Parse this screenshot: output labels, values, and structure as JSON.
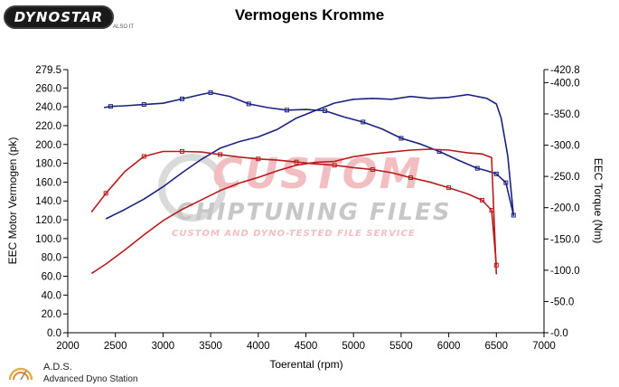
{
  "header": {
    "logo_text": "DYNOSTAR",
    "logo_sub": "ALSO IT",
    "title": "Vermogens Kromme"
  },
  "footer": {
    "name": "A.D.S.",
    "subtitle": "Advanced Dyno Station"
  },
  "watermark": {
    "main": "CUSTOM",
    "sub": "CHIPTUNING FILES",
    "tagline": "CUSTOM AND DYNO-TESTED FILE SERVICE"
  },
  "colors": {
    "tuned": "#1a237e",
    "stock": "#b71c1c",
    "axis": "#000000"
  },
  "chart_data": {
    "type": "line",
    "xlabel": "Toerental (rpm)",
    "ylabel_left": "EEC Motor Vermogen (pk)",
    "ylabel_right": "EEC Torque (Nm)",
    "xlim": [
      2000,
      7000
    ],
    "ylim_left": [
      0.0,
      279.5
    ],
    "ylim_right": [
      0.0,
      420.8
    ],
    "x_ticks": [
      "2000",
      "2500",
      "3000",
      "3500",
      "4000",
      "4500",
      "5000",
      "5500",
      "6000",
      "6500",
      "7000"
    ],
    "y_left_ticks": [
      "0.0",
      "20.0",
      "40.0",
      "60.0",
      "80.0",
      "100.0",
      "120.0",
      "140.0",
      "160.0",
      "180.0",
      "200.0",
      "220.0",
      "240.0",
      "260.0",
      "279.5"
    ],
    "y_right_ticks": [
      "0.0",
      "50.0",
      "100.0",
      "150.0",
      "200.0",
      "250.0",
      "300.0",
      "350.0",
      "400.0",
      "420.8"
    ],
    "series": [
      {
        "color": "#1a237e",
        "axis": "left",
        "x": [
          2400,
          2600,
          2800,
          3000,
          3200,
          3400,
          3600,
          3800,
          4000,
          4200,
          4400,
          4600,
          4800,
          5000,
          5200,
          5400,
          5600,
          5800,
          6000,
          6200,
          6400,
          6500,
          6550,
          6620,
          6680
        ],
        "y": [
          121,
          131,
          142,
          155,
          170,
          184,
          196,
          203,
          208,
          216,
          228,
          236,
          244,
          248,
          249,
          248,
          251,
          249,
          250,
          253,
          249,
          243,
          228,
          188,
          124
        ]
      },
      {
        "color": "#1a237e",
        "axis": "right",
        "x": [
          2380,
          2450,
          2600,
          2800,
          3000,
          3200,
          3400,
          3500,
          3700,
          3900,
          4100,
          4300,
          4500,
          4700,
          4900,
          5100,
          5300,
          5500,
          5700,
          5900,
          6100,
          6300,
          6400,
          6500,
          6600,
          6680
        ],
        "y": [
          360,
          362,
          363,
          365,
          367,
          374,
          381,
          384,
          378,
          366,
          360,
          356,
          357,
          355,
          345,
          337,
          326,
          311,
          302,
          290,
          276,
          263,
          259,
          254,
          240,
          188
        ]
      },
      {
        "color": "#b71c1c",
        "axis": "left",
        "x": [
          2250,
          2400,
          2600,
          2800,
          3000,
          3200,
          3400,
          3600,
          3800,
          4000,
          4200,
          4400,
          4600,
          4800,
          5000,
          5200,
          5400,
          5600,
          5800,
          6000,
          6200,
          6350,
          6450,
          6500
        ],
        "y": [
          63,
          73,
          88,
          104,
          119,
          131,
          141,
          151,
          159,
          165,
          172,
          178,
          181,
          182,
          187,
          190,
          192,
          194,
          195,
          194,
          191,
          190,
          186,
          62
        ]
      },
      {
        "color": "#b71c1c",
        "axis": "right",
        "x": [
          2250,
          2400,
          2600,
          2800,
          3000,
          3200,
          3400,
          3600,
          3800,
          4000,
          4200,
          4400,
          4600,
          4800,
          5000,
          5200,
          5400,
          5600,
          5800,
          6000,
          6200,
          6350,
          6450,
          6500
        ],
        "y": [
          193,
          223,
          258,
          282,
          290,
          290,
          289,
          285,
          281,
          278,
          276,
          273,
          270,
          268,
          264,
          261,
          256,
          248,
          241,
          232,
          222,
          212,
          196,
          108
        ]
      }
    ],
    "marker_x_rpm": 4650,
    "grid": false
  }
}
